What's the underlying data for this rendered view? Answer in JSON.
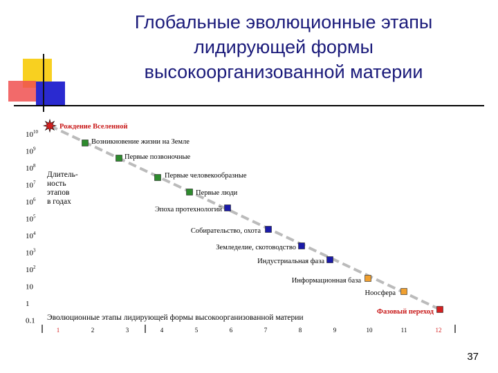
{
  "title": {
    "line1": "Глобальные  эволюционные  этапы",
    "line2": "лидирующей  формы",
    "line3": "высокоорганизованной  материи"
  },
  "page_number": "37",
  "colors": {
    "title": "#1a1a7a",
    "early_stage": "#2e8b2e",
    "middle_stage": "#1a1aa8",
    "late_stage": "#f0a030",
    "phase_transition": "#d42020",
    "dashed_line": "#bbbbbb"
  },
  "diagram": {
    "y_axis": {
      "ticks": [
        {
          "base": "10",
          "exp": "10"
        },
        {
          "base": "10",
          "exp": "9"
        },
        {
          "base": "10",
          "exp": "8"
        },
        {
          "base": "10",
          "exp": "7"
        },
        {
          "base": "10",
          "exp": "6"
        },
        {
          "base": "10",
          "exp": "5"
        },
        {
          "base": "10",
          "exp": "4"
        },
        {
          "base": "10",
          "exp": "3"
        },
        {
          "base": "10",
          "exp": "2"
        },
        {
          "base": "10",
          "exp": ""
        },
        {
          "base": "1",
          "exp": ""
        },
        {
          "base": "0.1",
          "exp": ""
        }
      ],
      "label_lines": [
        "Длитель-",
        "ность",
        "этапов",
        "в годах"
      ]
    },
    "x_axis": {
      "ticks": [
        "1",
        "2",
        "3",
        "4",
        "5",
        "6",
        "7",
        "8",
        "9",
        "10",
        "11",
        "12"
      ],
      "label": "Эволюционные этапы лидирующей формы высокоорганизованной материи"
    },
    "stages": [
      {
        "n": 1,
        "label": "Рождение  Вселенной",
        "marker": "star",
        "color": "#d42020"
      },
      {
        "n": 2,
        "label": "Возникновение  жизни  на  Земле",
        "marker": "square",
        "color": "#2e8b2e"
      },
      {
        "n": 3,
        "label": "Первые  позвоночные",
        "marker": "square",
        "color": "#2e8b2e"
      },
      {
        "n": 4,
        "label": "Первые  человекообразные",
        "marker": "square",
        "color": "#2e8b2e"
      },
      {
        "n": 5,
        "label": "Первые  люди",
        "marker": "square",
        "color": "#2e8b2e"
      },
      {
        "n": 6,
        "label": "Эпоха  протехнологий",
        "marker": "square",
        "color": "#1a1aa8"
      },
      {
        "n": 7,
        "label": "Собирательство, охота",
        "marker": "square",
        "color": "#1a1aa8"
      },
      {
        "n": 8,
        "label": "Земледелие, скотоводство",
        "marker": "square",
        "color": "#1a1aa8"
      },
      {
        "n": 9,
        "label": "Индустриальная  фаза",
        "marker": "square",
        "color": "#1a1aa8"
      },
      {
        "n": 10,
        "label": "Информационная база",
        "marker": "square",
        "color": "#f0a030"
      },
      {
        "n": 11,
        "label": "Ноосфера",
        "marker": "square",
        "color": "#f0a030"
      },
      {
        "n": 12,
        "label": "Фазовый  переход",
        "marker": "square",
        "color": "#d42020"
      }
    ]
  }
}
